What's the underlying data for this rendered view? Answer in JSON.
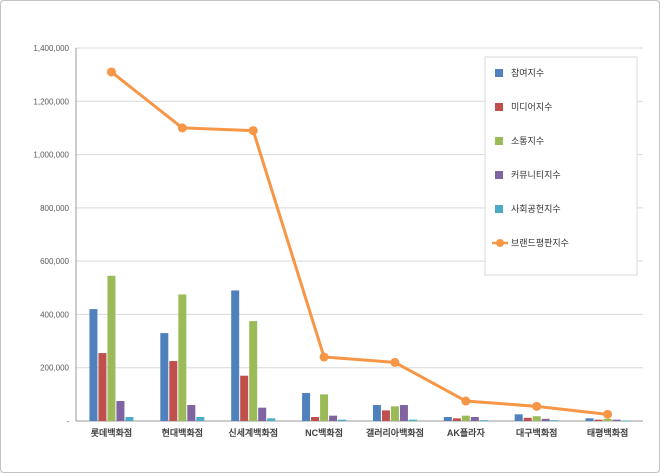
{
  "chart_data": {
    "type": "combo",
    "title": "",
    "xlabel": "",
    "ylabel": "",
    "ylim": [
      0,
      1400000
    ],
    "ytick_step": 200000,
    "yzero_label": "-",
    "grid": true,
    "legend_position": "right-inside",
    "categories": [
      "롯데백화점",
      "현대백화점",
      "신세계백화점",
      "NC백화점",
      "갤러리아백화점",
      "AK플라자",
      "대구백화점",
      "태평백화점"
    ],
    "series": [
      {
        "name": "참여지수",
        "type": "bar",
        "color": "#4F81BD",
        "values": [
          420000,
          330000,
          490000,
          105000,
          60000,
          15000,
          25000,
          10000
        ]
      },
      {
        "name": "미디어지수",
        "type": "bar",
        "color": "#C0504D",
        "values": [
          255000,
          225000,
          170000,
          15000,
          40000,
          10000,
          12000,
          5000
        ]
      },
      {
        "name": "소통지수",
        "type": "bar",
        "color": "#9BBB59",
        "values": [
          545000,
          475000,
          375000,
          100000,
          55000,
          20000,
          18000,
          8000
        ]
      },
      {
        "name": "커뮤니티지수",
        "type": "bar",
        "color": "#8064A2",
        "values": [
          75000,
          60000,
          50000,
          20000,
          60000,
          15000,
          8000,
          5000
        ]
      },
      {
        "name": "사회공헌지수",
        "type": "bar",
        "color": "#4BACC6",
        "values": [
          15000,
          15000,
          10000,
          5000,
          5000,
          3000,
          3000,
          2000
        ]
      },
      {
        "name": "브랜드평판지수",
        "type": "line",
        "color": "#F79646",
        "values": [
          1310000,
          1100000,
          1090000,
          240000,
          220000,
          75000,
          55000,
          25000
        ]
      }
    ],
    "axis_color": "#9a9a9a",
    "gridline_color": "#d9d9d9",
    "tick_label_color": "#595959",
    "category_label_color": "#404040"
  }
}
